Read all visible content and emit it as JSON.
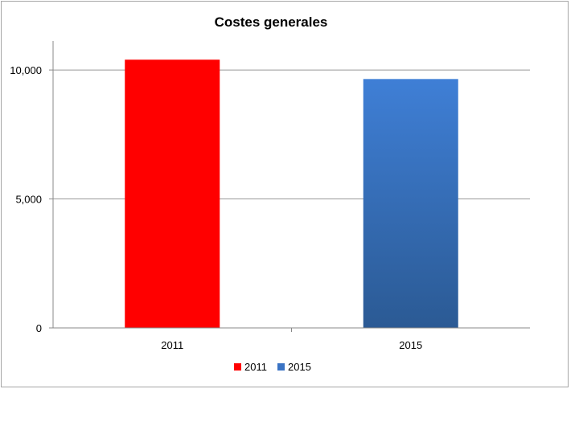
{
  "chart_data": {
    "type": "bar",
    "title": "Costes generales",
    "xlabel": "",
    "ylabel": "",
    "categories": [
      "2011",
      "2015"
    ],
    "series": [
      {
        "name": "2011",
        "values": [
          10400,
          null
        ],
        "color": "#ff0000"
      },
      {
        "name": "2015",
        "values": [
          null,
          9650
        ],
        "color": "#3a73c4"
      }
    ],
    "ylim": [
      0,
      11000
    ],
    "yticks": [
      {
        "value": 0,
        "label": "0"
      },
      {
        "value": 5000,
        "label": "5,000"
      },
      {
        "value": 10000,
        "label": "10,000"
      }
    ],
    "grid": true,
    "legend": "bottom",
    "legend_entries": [
      {
        "label": "2011",
        "color": "#ff0000"
      },
      {
        "label": "2015",
        "color": "#3a73c4"
      }
    ]
  }
}
